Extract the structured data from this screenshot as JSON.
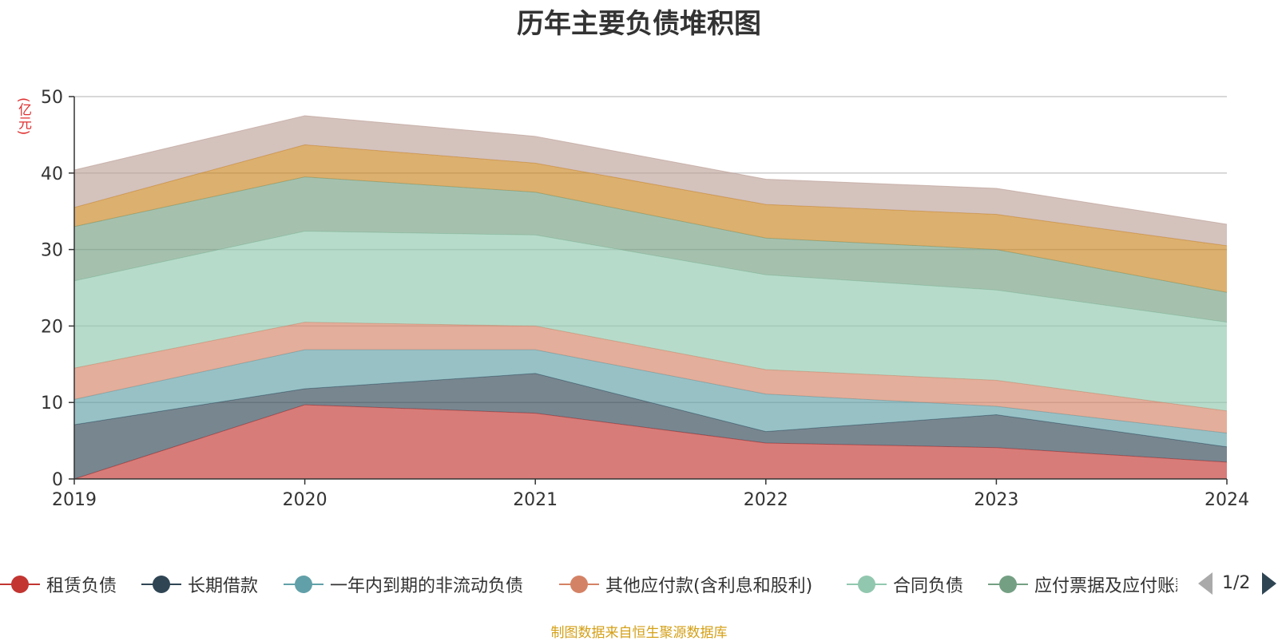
{
  "chart_data": {
    "type": "area",
    "title": "历年主要负债堆积图",
    "unit": "(亿元)",
    "categories": [
      "2019",
      "2020",
      "2021",
      "2022",
      "2023",
      "2024"
    ],
    "ylim": [
      0,
      50
    ],
    "yticks": [
      "0",
      "10",
      "20",
      "30",
      "40",
      "50"
    ],
    "stacked": true,
    "grid": true,
    "legend_position": "bottom",
    "series": [
      {
        "name": "租赁负债",
        "color": "#c23531",
        "values": [
          0.0,
          9.7,
          8.6,
          4.7,
          4.1,
          2.2
        ]
      },
      {
        "name": "长期借款",
        "color": "#2f4554",
        "values": [
          7.1,
          2.1,
          5.2,
          1.5,
          4.3,
          2.0
        ]
      },
      {
        "name": "一年内到期的非流动负债",
        "color": "#61a0a8",
        "values": [
          3.3,
          5.1,
          3.1,
          4.9,
          1.1,
          1.8
        ]
      },
      {
        "name": "其他应付款(含利息和股利)",
        "color": "#d48265",
        "values": [
          4.1,
          3.6,
          3.1,
          3.2,
          3.4,
          2.9
        ]
      },
      {
        "name": "合同负债",
        "color": "#91c7ae",
        "values": [
          11.4,
          11.9,
          11.9,
          12.4,
          11.8,
          11.6
        ]
      },
      {
        "name": "应付票据及应付账款",
        "color": "#749f83",
        "values": [
          7.1,
          7.1,
          5.6,
          4.8,
          5.3,
          3.9
        ]
      },
      {
        "name": "",
        "color": "#ca8622",
        "values": [
          2.5,
          4.2,
          3.8,
          4.4,
          4.6,
          6.1
        ]
      },
      {
        "name": "",
        "color": "#bda29a",
        "values": [
          4.9,
          3.8,
          3.5,
          3.3,
          3.4,
          2.8
        ]
      }
    ]
  },
  "legend": {
    "page": "1/2"
  },
  "source": "制图数据来自恒生聚源数据库"
}
